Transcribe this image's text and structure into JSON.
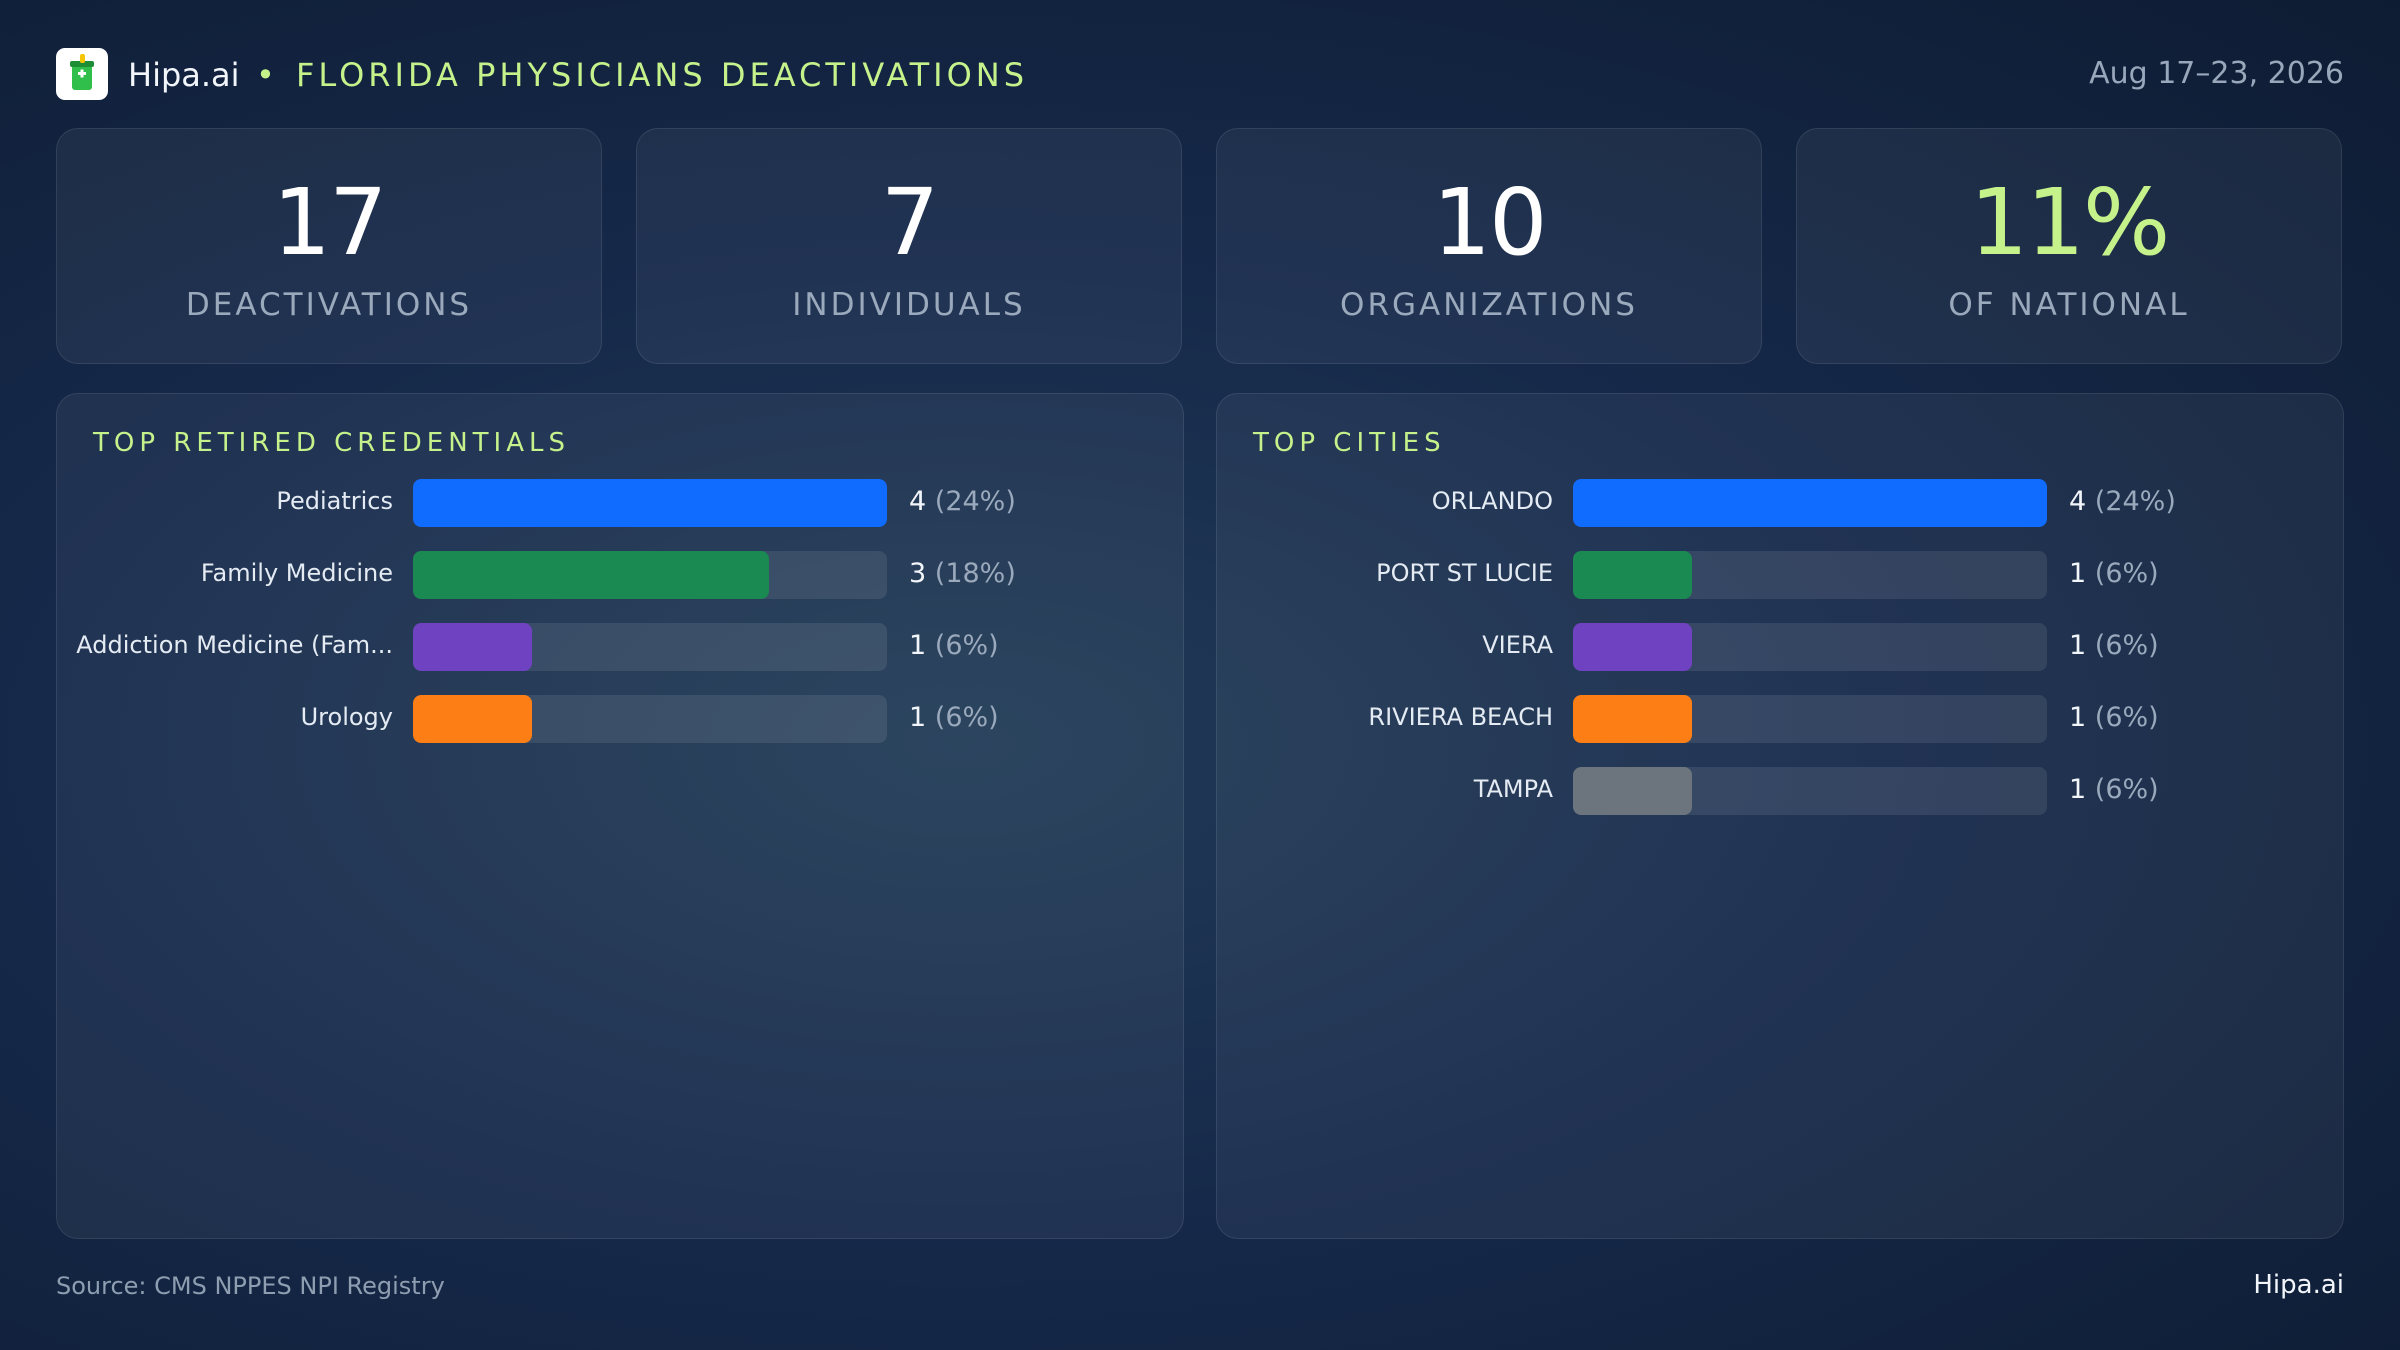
{
  "header": {
    "brand": "Hipa.ai",
    "separator": "•",
    "title": "FLORIDA PHYSICIANS DEACTIVATIONS",
    "date_range": "Aug 17–23, 2026",
    "logo_icon": "medicine-cup-icon"
  },
  "kpis": [
    {
      "value": "17",
      "label": "DEACTIVATIONS"
    },
    {
      "value": "7",
      "label": "INDIVIDUALS"
    },
    {
      "value": "10",
      "label": "ORGANIZATIONS"
    },
    {
      "value": "11%",
      "label": "OF NATIONAL",
      "accent": "#c6f28b"
    }
  ],
  "colors": {
    "accent": "#c6f28b",
    "blue": "#0f6cff",
    "green": "#1b8a52",
    "purple": "#6f42c1",
    "orange": "#fd7e14",
    "gray": "#6c757d"
  },
  "chart_data": [
    {
      "type": "bar",
      "orientation": "horizontal",
      "title": "TOP RETIRED CREDENTIALS",
      "categories": [
        "Pediatrics",
        "Family Medicine",
        "Addiction Medicine (Fam...",
        "Urology"
      ],
      "values": [
        4,
        3,
        1,
        1
      ],
      "value_labels": [
        "4",
        "3",
        "1",
        "1"
      ],
      "percent_labels": [
        "(24%)",
        "(18%)",
        "(6%)",
        "(6%)"
      ],
      "colors": [
        "#0f6cff",
        "#1b8a52",
        "#6f42c1",
        "#fd7e14"
      ],
      "xlim": [
        0,
        4
      ],
      "grid": false
    },
    {
      "type": "bar",
      "orientation": "horizontal",
      "title": "TOP CITIES",
      "categories": [
        "ORLANDO",
        "PORT ST LUCIE",
        "VIERA",
        "RIVIERA BEACH",
        "TAMPA"
      ],
      "values": [
        4,
        1,
        1,
        1,
        1
      ],
      "value_labels": [
        "4",
        "1",
        "1",
        "1",
        "1"
      ],
      "percent_labels": [
        "(24%)",
        "(6%)",
        "(6%)",
        "(6%)",
        "(6%)"
      ],
      "colors": [
        "#0f6cff",
        "#1b8a52",
        "#6f42c1",
        "#fd7e14",
        "#6c757d"
      ],
      "xlim": [
        0,
        4
      ],
      "grid": false
    }
  ],
  "footer": {
    "source": "Source: CMS NPPES NPI Registry",
    "brand": "Hipa.ai"
  }
}
